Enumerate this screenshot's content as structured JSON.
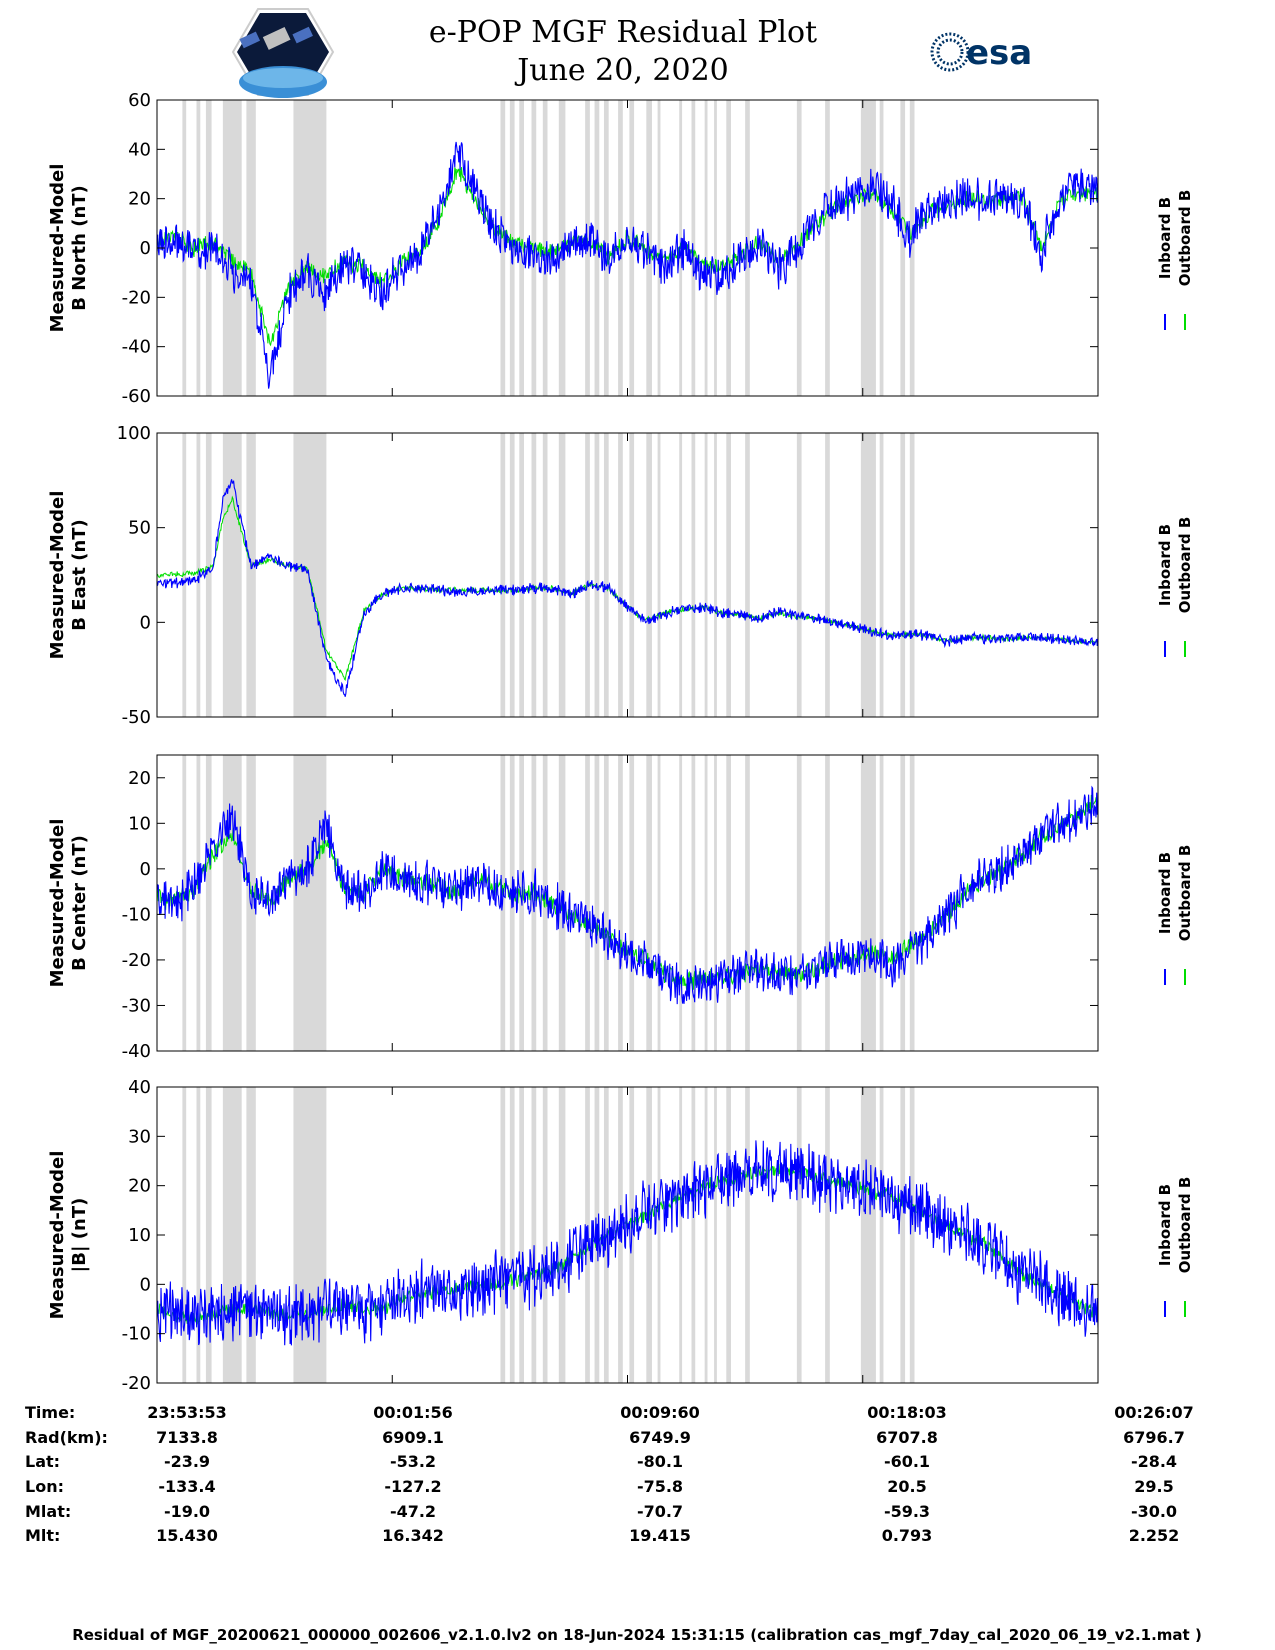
{
  "title_line1": "e-POP MGF Residual Plot",
  "title_line2": "June 20, 2020",
  "esa_logo_text": "esa",
  "colors": {
    "inboard": "#0000ff",
    "outboard": "#00dd00",
    "shade": "#d9d9d9"
  },
  "legend": {
    "inboard": "Inboard B",
    "outboard": "Outboard B"
  },
  "chart_data": [
    {
      "type": "line",
      "ylabel_line1": "Measured-Model",
      "ylabel_line2": "B North (nT)",
      "ylim": [
        -60,
        60
      ],
      "yticks": [
        -60,
        -40,
        -20,
        0,
        20,
        40,
        60
      ],
      "series": [
        {
          "name": "Inboard B",
          "x": [
            0.0,
            0.02,
            0.04,
            0.06,
            0.08,
            0.1,
            0.12,
            0.14,
            0.16,
            0.18,
            0.2,
            0.22,
            0.24,
            0.26,
            0.28,
            0.3,
            0.32,
            0.34,
            0.36,
            0.38,
            0.4,
            0.42,
            0.44,
            0.46,
            0.48,
            0.5,
            0.52,
            0.54,
            0.56,
            0.58,
            0.6,
            0.62,
            0.64,
            0.66,
            0.68,
            0.7,
            0.72,
            0.74,
            0.76,
            0.78,
            0.8,
            0.82,
            0.84,
            0.86,
            0.88,
            0.9,
            0.92,
            0.94,
            0.96,
            0.98,
            1.0
          ],
          "values": [
            2,
            4,
            -2,
            0,
            -8,
            -15,
            -52,
            -20,
            -10,
            -18,
            -5,
            -10,
            -18,
            -8,
            -2,
            15,
            38,
            22,
            8,
            0,
            -3,
            -5,
            2,
            3,
            -5,
            5,
            -2,
            -8,
            0,
            -10,
            -12,
            -5,
            2,
            -8,
            -2,
            12,
            18,
            22,
            26,
            18,
            5,
            16,
            19,
            22,
            20,
            21,
            20,
            -2,
            20,
            25,
            24
          ],
          "amp": 12
        },
        {
          "name": "Outboard B",
          "x": [
            0.0,
            0.02,
            0.04,
            0.06,
            0.08,
            0.1,
            0.12,
            0.14,
            0.16,
            0.18,
            0.2,
            0.22,
            0.24,
            0.26,
            0.28,
            0.3,
            0.32,
            0.34,
            0.36,
            0.38,
            0.4,
            0.42,
            0.44,
            0.46,
            0.48,
            0.5,
            0.52,
            0.54,
            0.56,
            0.58,
            0.6,
            0.62,
            0.64,
            0.66,
            0.68,
            0.7,
            0.72,
            0.74,
            0.76,
            0.78,
            0.8,
            0.82,
            0.84,
            0.86,
            0.88,
            0.9,
            0.92,
            0.94,
            0.96,
            0.98,
            1.0
          ],
          "values": [
            3,
            5,
            0,
            2,
            -5,
            -10,
            -40,
            -15,
            -8,
            -12,
            -5,
            -8,
            -14,
            -6,
            -2,
            12,
            32,
            18,
            8,
            2,
            0,
            -2,
            2,
            3,
            -3,
            4,
            -1,
            -5,
            1,
            -6,
            -8,
            -3,
            3,
            -5,
            0,
            10,
            16,
            20,
            22,
            16,
            6,
            14,
            17,
            20,
            19,
            20,
            20,
            0,
            19,
            22,
            22
          ],
          "amp": 5
        }
      ]
    },
    {
      "type": "line",
      "ylabel_line1": "Measured-Model",
      "ylabel_line2": "B East (nT)",
      "ylim": [
        -50,
        100
      ],
      "yticks": [
        -50,
        0,
        50,
        100
      ],
      "series": [
        {
          "name": "Inboard B",
          "x": [
            0.0,
            0.04,
            0.06,
            0.07,
            0.08,
            0.1,
            0.12,
            0.14,
            0.16,
            0.18,
            0.2,
            0.22,
            0.24,
            0.26,
            0.28,
            0.3,
            0.32,
            0.34,
            0.36,
            0.38,
            0.4,
            0.42,
            0.44,
            0.46,
            0.48,
            0.5,
            0.52,
            0.54,
            0.56,
            0.58,
            0.6,
            0.62,
            0.64,
            0.66,
            0.68,
            0.7,
            0.72,
            0.74,
            0.76,
            0.78,
            0.8,
            0.82,
            0.84,
            0.86,
            0.88,
            0.9,
            0.92,
            0.94,
            0.96,
            0.98,
            1.0
          ],
          "values": [
            20,
            22,
            30,
            65,
            75,
            30,
            35,
            30,
            28,
            -20,
            -38,
            5,
            15,
            18,
            18,
            17,
            16,
            17,
            17,
            17,
            18,
            18,
            15,
            20,
            18,
            8,
            0,
            5,
            7,
            8,
            5,
            4,
            2,
            6,
            3,
            2,
            0,
            -2,
            -5,
            -7,
            -6,
            -7,
            -10,
            -8,
            -8,
            -9,
            -8,
            -8,
            -9,
            -10,
            -11
          ],
          "amp": 4
        },
        {
          "name": "Outboard B",
          "x": [
            0.0,
            0.04,
            0.06,
            0.07,
            0.08,
            0.1,
            0.12,
            0.14,
            0.16,
            0.18,
            0.2,
            0.22,
            0.24,
            0.26,
            0.28,
            0.3,
            0.32,
            0.34,
            0.36,
            0.38,
            0.4,
            0.42,
            0.44,
            0.46,
            0.48,
            0.5,
            0.52,
            0.54,
            0.56,
            0.58,
            0.6,
            0.62,
            0.64,
            0.66,
            0.68,
            0.7,
            0.72,
            0.74,
            0.76,
            0.78,
            0.8,
            0.82,
            0.84,
            0.86,
            0.88,
            0.9,
            0.92,
            0.94,
            0.96,
            0.98,
            1.0
          ],
          "values": [
            25,
            26,
            30,
            55,
            65,
            30,
            33,
            30,
            28,
            -15,
            -30,
            6,
            15,
            18,
            18,
            17,
            17,
            17,
            17,
            17,
            18,
            18,
            15,
            20,
            18,
            8,
            1,
            5,
            7,
            8,
            5,
            4,
            2,
            5,
            3,
            2,
            0,
            -2,
            -5,
            -7,
            -6,
            -7,
            -10,
            -8,
            -8,
            -9,
            -8,
            -8,
            -9,
            -10,
            -11
          ],
          "amp": 2
        }
      ]
    },
    {
      "type": "line",
      "ylabel_line1": "Measured-Model",
      "ylabel_line2": "B Center (nT)",
      "ylim": [
        -40,
        25
      ],
      "yticks": [
        -40,
        -30,
        -20,
        -10,
        0,
        10,
        20
      ],
      "series": [
        {
          "name": "Inboard B",
          "x": [
            0.0,
            0.02,
            0.04,
            0.06,
            0.08,
            0.1,
            0.12,
            0.14,
            0.16,
            0.18,
            0.2,
            0.22,
            0.24,
            0.26,
            0.28,
            0.3,
            0.32,
            0.34,
            0.36,
            0.38,
            0.4,
            0.42,
            0.44,
            0.46,
            0.48,
            0.5,
            0.52,
            0.54,
            0.56,
            0.58,
            0.6,
            0.62,
            0.64,
            0.66,
            0.68,
            0.7,
            0.72,
            0.74,
            0.76,
            0.78,
            0.8,
            0.82,
            0.84,
            0.86,
            0.88,
            0.9,
            0.92,
            0.94,
            0.96,
            0.98,
            1.0
          ],
          "values": [
            -5,
            -8,
            -3,
            5,
            12,
            -5,
            -8,
            -2,
            0,
            10,
            -5,
            -5,
            0,
            -2,
            -3,
            -4,
            -5,
            -2,
            -4,
            -6,
            -5,
            -8,
            -10,
            -12,
            -15,
            -18,
            -20,
            -24,
            -26,
            -25,
            -24,
            -23,
            -22,
            -23,
            -24,
            -23,
            -20,
            -20,
            -18,
            -22,
            -18,
            -15,
            -10,
            -5,
            -2,
            0,
            3,
            7,
            10,
            12,
            15
          ],
          "amp": 7
        },
        {
          "name": "Outboard B",
          "x": [
            0.0,
            0.02,
            0.04,
            0.06,
            0.08,
            0.1,
            0.12,
            0.14,
            0.16,
            0.18,
            0.2,
            0.22,
            0.24,
            0.26,
            0.28,
            0.3,
            0.32,
            0.34,
            0.36,
            0.38,
            0.4,
            0.42,
            0.44,
            0.46,
            0.48,
            0.5,
            0.52,
            0.54,
            0.56,
            0.58,
            0.6,
            0.62,
            0.64,
            0.66,
            0.68,
            0.7,
            0.72,
            0.74,
            0.76,
            0.78,
            0.8,
            0.82,
            0.84,
            0.86,
            0.88,
            0.9,
            0.92,
            0.94,
            0.96,
            0.98,
            1.0
          ],
          "values": [
            -6,
            -7,
            -4,
            3,
            8,
            -5,
            -7,
            -2,
            0,
            6,
            -5,
            -5,
            0,
            -2,
            -3,
            -4,
            -5,
            -2,
            -4,
            -6,
            -5,
            -8,
            -10,
            -12,
            -15,
            -18,
            -20,
            -23,
            -25,
            -24,
            -24,
            -23,
            -22,
            -23,
            -23,
            -22,
            -20,
            -20,
            -18,
            -20,
            -17,
            -14,
            -10,
            -5,
            -2,
            0,
            3,
            7,
            10,
            12,
            15
          ],
          "amp": 3
        }
      ]
    },
    {
      "type": "line",
      "ylabel_line1": "Measured-Model",
      "ylabel_line2": "|B| (nT)",
      "ylim": [
        -20,
        40
      ],
      "yticks": [
        -20,
        -10,
        0,
        10,
        20,
        30,
        40
      ],
      "series": [
        {
          "name": "Inboard B",
          "x": [
            0.0,
            0.02,
            0.04,
            0.06,
            0.08,
            0.1,
            0.12,
            0.14,
            0.16,
            0.18,
            0.2,
            0.22,
            0.24,
            0.26,
            0.28,
            0.3,
            0.32,
            0.34,
            0.36,
            0.38,
            0.4,
            0.42,
            0.44,
            0.46,
            0.48,
            0.5,
            0.52,
            0.54,
            0.56,
            0.58,
            0.6,
            0.62,
            0.64,
            0.66,
            0.68,
            0.7,
            0.72,
            0.74,
            0.76,
            0.78,
            0.8,
            0.82,
            0.84,
            0.86,
            0.88,
            0.9,
            0.92,
            0.94,
            0.96,
            0.98,
            1.0
          ],
          "values": [
            -5,
            -6,
            -7,
            -6,
            -5,
            -5,
            -6,
            -6,
            -6,
            -5,
            -4,
            -5,
            -5,
            -3,
            -2,
            -1,
            -1,
            0,
            0,
            1,
            2,
            3,
            5,
            8,
            10,
            12,
            14,
            16,
            18,
            20,
            21,
            22,
            23,
            23,
            23,
            22,
            21,
            20,
            19,
            18,
            16,
            14,
            12,
            10,
            8,
            5,
            2,
            0,
            -2,
            -4,
            -6
          ],
          "amp": 9
        },
        {
          "name": "Outboard B",
          "x": [
            0.0,
            0.02,
            0.04,
            0.06,
            0.08,
            0.1,
            0.12,
            0.14,
            0.16,
            0.18,
            0.2,
            0.22,
            0.24,
            0.26,
            0.28,
            0.3,
            0.32,
            0.34,
            0.36,
            0.38,
            0.4,
            0.42,
            0.44,
            0.46,
            0.48,
            0.5,
            0.52,
            0.54,
            0.56,
            0.58,
            0.6,
            0.62,
            0.64,
            0.66,
            0.68,
            0.7,
            0.72,
            0.74,
            0.76,
            0.78,
            0.8,
            0.82,
            0.84,
            0.86,
            0.88,
            0.9,
            0.92,
            0.94,
            0.96,
            0.98,
            1.0
          ],
          "values": [
            -5,
            -6,
            -7,
            -6,
            -5,
            -5,
            -6,
            -6,
            -6,
            -5,
            -4,
            -5,
            -5,
            -3,
            -2,
            -1,
            -1,
            0,
            0,
            1,
            2,
            3,
            5,
            8,
            10,
            12,
            14,
            16,
            18,
            20,
            21,
            22,
            23,
            23,
            23,
            22,
            21,
            20,
            19,
            18,
            16,
            14,
            12,
            10,
            8,
            5,
            2,
            0,
            -2,
            -4,
            -6
          ],
          "amp": 2
        }
      ]
    }
  ],
  "shaded_intervals": [
    [
      0.027,
      0.031
    ],
    [
      0.042,
      0.046
    ],
    [
      0.052,
      0.058
    ],
    [
      0.07,
      0.09
    ],
    [
      0.095,
      0.105
    ],
    [
      0.145,
      0.18
    ],
    [
      0.365,
      0.37
    ],
    [
      0.375,
      0.38
    ],
    [
      0.385,
      0.39
    ],
    [
      0.398,
      0.403
    ],
    [
      0.41,
      0.415
    ],
    [
      0.427,
      0.434
    ],
    [
      0.455,
      0.46
    ],
    [
      0.465,
      0.47
    ],
    [
      0.475,
      0.48
    ],
    [
      0.49,
      0.495
    ],
    [
      0.502,
      0.507
    ],
    [
      0.52,
      0.526
    ],
    [
      0.532,
      0.535
    ],
    [
      0.555,
      0.558
    ],
    [
      0.568,
      0.572
    ],
    [
      0.582,
      0.585
    ],
    [
      0.592,
      0.595
    ],
    [
      0.605,
      0.61
    ],
    [
      0.625,
      0.63
    ],
    [
      0.68,
      0.685
    ],
    [
      0.71,
      0.715
    ],
    [
      0.748,
      0.764
    ],
    [
      0.768,
      0.772
    ],
    [
      0.79,
      0.795
    ],
    [
      0.8,
      0.805
    ]
  ],
  "info_table": {
    "labels": [
      "Time:",
      "Rad(km):",
      "Lat:",
      "Lon:",
      "Mlat:",
      "Mlt:"
    ],
    "columns": [
      [
        "23:53:53",
        "7133.8",
        "-23.9",
        "-133.4",
        "-19.0",
        "15.430"
      ],
      [
        "00:01:56",
        "6909.1",
        "-53.2",
        "-127.2",
        "-47.2",
        "16.342"
      ],
      [
        "00:09:60",
        "6749.9",
        "-80.1",
        "-75.8",
        "-70.7",
        "19.415"
      ],
      [
        "00:18:03",
        "6707.8",
        "-60.1",
        "20.5",
        "-59.3",
        "0.793"
      ],
      [
        "00:26:07",
        "6796.7",
        "-28.4",
        "29.5",
        "-30.0",
        "2.252"
      ]
    ]
  },
  "footer": "Residual of MGF_20200621_000000_002606_v2.1.0.lv2 on 18-Jun-2024 15:31:15 (calibration cas_mgf_7day_cal_2020_06_19_v2.1.mat )"
}
